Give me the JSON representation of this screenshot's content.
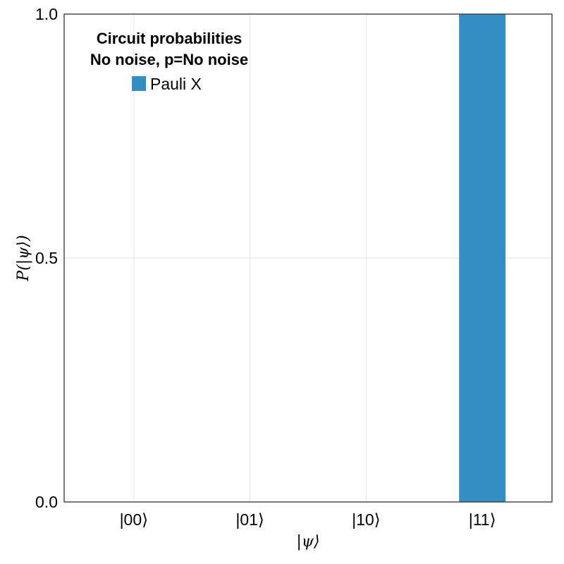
{
  "chart_data": {
    "type": "bar",
    "title_line1": "Circuit probabilities",
    "title_line2": "No noise, p=No noise",
    "xlabel": "|ψ⟩",
    "ylabel": "P(|ψ⟩)",
    "categories": [
      "|00⟩",
      "|01⟩",
      "|10⟩",
      "|11⟩"
    ],
    "series": [
      {
        "name": "Pauli X",
        "values": [
          0,
          0,
          0,
          1.0
        ],
        "color": "#348dc3"
      }
    ],
    "ylim": [
      0,
      1
    ],
    "yticks": [
      0,
      0.5,
      1
    ],
    "ytick_labels": [
      "0.0",
      "0.5",
      "1.0"
    ],
    "grid": true,
    "legend_position": "top-left"
  }
}
